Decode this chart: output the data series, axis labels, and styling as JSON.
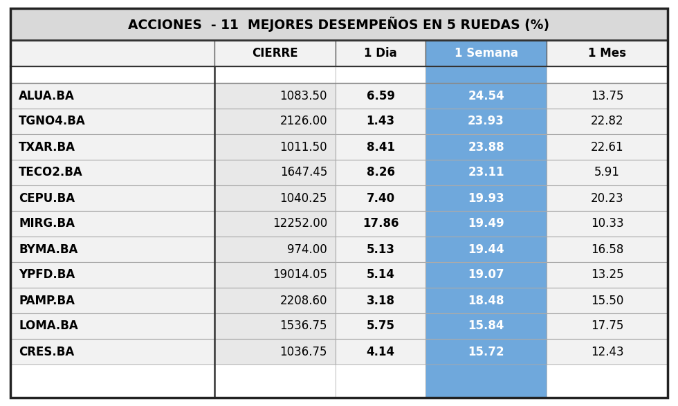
{
  "title": "ACCIONES  - 11  MEJORES DESEMPEÑOS EN 5 RUEDAS (%)",
  "col_headers": [
    "",
    "CIERRE",
    "1 Dia",
    "1 Semana",
    "1 Mes"
  ],
  "rows": [
    [
      "ALUA.BA",
      "1083.50",
      "6.59",
      "24.54",
      "13.75"
    ],
    [
      "TGNO4.BA",
      "2126.00",
      "1.43",
      "23.93",
      "22.82"
    ],
    [
      "TXAR.BA",
      "1011.50",
      "8.41",
      "23.88",
      "22.61"
    ],
    [
      "TECO2.BA",
      "1647.45",
      "8.26",
      "23.11",
      "5.91"
    ],
    [
      "CEPU.BA",
      "1040.25",
      "7.40",
      "19.93",
      "20.23"
    ],
    [
      "MIRG.BA",
      "12252.00",
      "17.86",
      "19.49",
      "10.33"
    ],
    [
      "BYMA.BA",
      "974.00",
      "5.13",
      "19.44",
      "16.58"
    ],
    [
      "YPFD.BA",
      "19014.05",
      "5.14",
      "19.07",
      "13.25"
    ],
    [
      "PAMP.BA",
      "2208.60",
      "3.18",
      "18.48",
      "15.50"
    ],
    [
      "LOMA.BA",
      "1536.75",
      "5.75",
      "15.84",
      "17.75"
    ],
    [
      "CRES.BA",
      "1036.75",
      "4.14",
      "15.72",
      "12.43"
    ]
  ],
  "title_bg": "#d9d9d9",
  "header_bg": "#f2f2f2",
  "ticker_bg": "#f2f2f2",
  "cierre_bg": "#e8e8e8",
  "dia_bg": "#f2f2f2",
  "semana_bg": "#6fa8dc",
  "mes_bg": "#f2f2f2",
  "empty_bg": "#ffffff",
  "title_fontsize": 13.5,
  "header_fontsize": 12,
  "data_fontsize": 12
}
